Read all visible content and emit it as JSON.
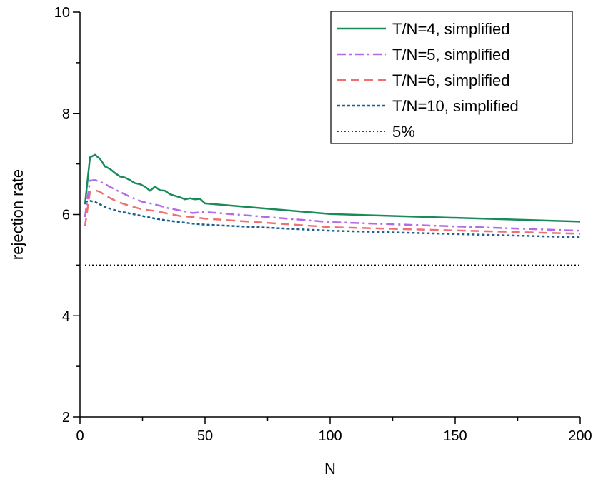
{
  "chart_data": {
    "type": "line",
    "title": "",
    "xlabel": "N",
    "ylabel": "rejection rate",
    "xlim": [
      0,
      200
    ],
    "ylim": [
      2,
      10
    ],
    "x_ticks": [
      0,
      50,
      100,
      150,
      200
    ],
    "y_ticks": [
      2,
      4,
      6,
      8,
      10
    ],
    "grid": false,
    "legend_position": "top-right",
    "series": [
      {
        "name": "T/N=4, simplified",
        "color": "#1a8a5a",
        "dash": "solid",
        "x": [
          2,
          4,
          6,
          8,
          10,
          12,
          14,
          16,
          18,
          20,
          22,
          24,
          26,
          28,
          30,
          32,
          34,
          36,
          38,
          40,
          42,
          44,
          46,
          48,
          50,
          100,
          200
        ],
        "y": [
          6.2,
          7.13,
          7.18,
          7.1,
          6.95,
          6.9,
          6.82,
          6.75,
          6.73,
          6.68,
          6.62,
          6.6,
          6.55,
          6.47,
          6.55,
          6.48,
          6.47,
          6.4,
          6.37,
          6.34,
          6.3,
          6.32,
          6.3,
          6.31,
          6.22,
          6.01,
          5.86
        ]
      },
      {
        "name": "T/N=5, simplified",
        "color": "#b36ae8",
        "dash": "dashdot",
        "x": [
          2,
          4,
          6,
          8,
          10,
          15,
          20,
          25,
          30,
          35,
          40,
          45,
          50,
          100,
          200
        ],
        "y": [
          5.95,
          6.67,
          6.68,
          6.65,
          6.6,
          6.47,
          6.35,
          6.25,
          6.2,
          6.13,
          6.08,
          6.03,
          6.05,
          5.85,
          5.68
        ]
      },
      {
        "name": "T/N=6, simplified",
        "color": "#f07070",
        "dash": "dashed",
        "x": [
          2,
          4,
          6,
          8,
          10,
          15,
          20,
          25,
          30,
          35,
          40,
          45,
          50,
          100,
          200
        ],
        "y": [
          5.77,
          6.45,
          6.48,
          6.45,
          6.38,
          6.25,
          6.17,
          6.1,
          6.07,
          6.02,
          5.97,
          5.95,
          5.92,
          5.75,
          5.62
        ]
      },
      {
        "name": "T/N=10, simplified",
        "color": "#1a5f90",
        "dash": "dotted",
        "x": [
          2,
          4,
          6,
          8,
          10,
          15,
          20,
          25,
          30,
          35,
          40,
          45,
          50,
          100,
          200
        ],
        "y": [
          6.25,
          6.27,
          6.25,
          6.2,
          6.15,
          6.07,
          6.02,
          5.97,
          5.92,
          5.88,
          5.85,
          5.82,
          5.8,
          5.68,
          5.55
        ]
      },
      {
        "name": "5%",
        "color": "#000000",
        "dash": "dotted",
        "x": [
          2,
          200
        ],
        "y": [
          5,
          5
        ]
      }
    ]
  }
}
